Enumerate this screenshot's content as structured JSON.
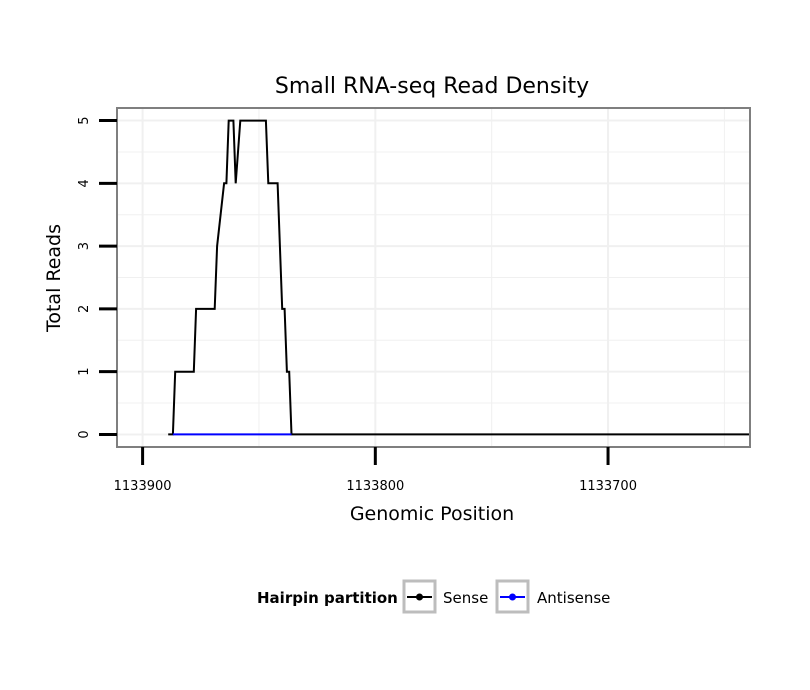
{
  "chart_data": {
    "type": "line",
    "title": "Small RNA-seq Read Density",
    "xlabel": "Genomic Position",
    "ylabel": "Total Reads",
    "xlim": [
      1133911,
      1133639
    ],
    "ylim": [
      -0.2,
      5.2
    ],
    "x_reversed": true,
    "x_ticks": [
      1133900,
      1133800,
      1133700
    ],
    "x_tick_labels": [
      "1133900",
      "1133800",
      "1133700"
    ],
    "y_ticks": [
      0,
      1,
      2,
      3,
      4,
      5
    ],
    "y_tick_labels": [
      "0",
      "1",
      "2",
      "3",
      "4",
      "5"
    ],
    "grid": true,
    "series": [
      {
        "name": "Sense",
        "color": "#000000",
        "x": [
          1133889,
          1133887,
          1133886,
          1133878,
          1133877,
          1133869,
          1133868,
          1133865,
          1133864,
          1133863,
          1133862,
          1133861,
          1133860,
          1133858,
          1133857,
          1133847,
          1133846,
          1133842,
          1133841,
          1133840,
          1133839,
          1133838,
          1133837,
          1133836,
          1133835,
          1133639
        ],
        "y": [
          0,
          0,
          1,
          1,
          2,
          2,
          3,
          4,
          4,
          5,
          5,
          5,
          4,
          5,
          5,
          5,
          4,
          4,
          3,
          2,
          2,
          1,
          1,
          0,
          0,
          0
        ]
      },
      {
        "name": "Antisense",
        "color": "#0000ff",
        "x": [
          1133887,
          1133836
        ],
        "y": [
          0,
          0
        ]
      }
    ],
    "legend": {
      "title": "Hairpin partition",
      "placement": "bottom",
      "entries": [
        "Sense",
        "Antisense"
      ]
    }
  }
}
